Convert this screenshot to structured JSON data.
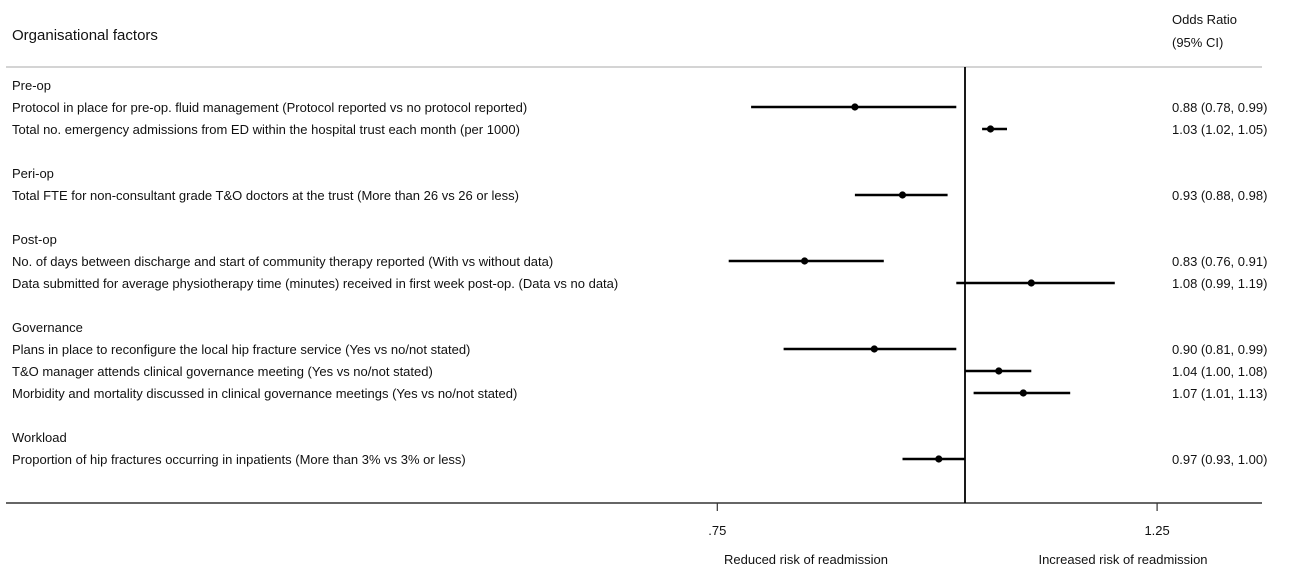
{
  "header": {
    "left_title": "Organisational factors",
    "right_title_line1": "Odds Ratio",
    "right_title_line2": "(95% CI)"
  },
  "axis": {
    "tick_labels": [
      ".75",
      "1.25"
    ],
    "left_caption": "Reduced risk of readmission",
    "right_caption": "Increased risk of readmission"
  },
  "chart_data": {
    "type": "forest",
    "x_scale": "log",
    "xlim": [
      0.6,
      1.4
    ],
    "reference_line": 1.0,
    "xticks": [
      0.75,
      1.25
    ],
    "colors": {
      "marks": "#000000",
      "frame": "#333333",
      "separator": "#bbbbbb"
    },
    "groups": [
      {
        "label": "Pre-op",
        "rows": [
          {
            "label": "Protocol in place for pre-op. fluid management (Protocol reported vs no protocol reported)",
            "or": 0.88,
            "lo": 0.78,
            "hi": 0.99,
            "ci_text": "0.88 (0.78, 0.99)"
          },
          {
            "label": "Total no. emergency admissions from ED within the hospital trust each month (per 1000)",
            "or": 1.03,
            "lo": 1.02,
            "hi": 1.05,
            "ci_text": "1.03 (1.02, 1.05)"
          }
        ]
      },
      {
        "label": "Peri-op",
        "rows": [
          {
            "label": "Total FTE for non-consultant grade T&O doctors at the trust (More than 26 vs 26 or less)",
            "or": 0.93,
            "lo": 0.88,
            "hi": 0.98,
            "ci_text": "0.93 (0.88, 0.98)"
          }
        ]
      },
      {
        "label": "Post-op",
        "rows": [
          {
            "label": "No. of days between discharge and start of community therapy reported (With vs without data)",
            "or": 0.83,
            "lo": 0.76,
            "hi": 0.91,
            "ci_text": "0.83 (0.76, 0.91)"
          },
          {
            "label": "Data submitted for average physiotherapy time (minutes) received in first week post-op. (Data vs no data)",
            "or": 1.08,
            "lo": 0.99,
            "hi": 1.19,
            "ci_text": "1.08 (0.99, 1.19)"
          }
        ]
      },
      {
        "label": "Governance",
        "rows": [
          {
            "label": "Plans in place to reconfigure the local hip fracture service (Yes vs no/not stated)",
            "or": 0.9,
            "lo": 0.81,
            "hi": 0.99,
            "ci_text": "0.90 (0.81, 0.99)"
          },
          {
            "label": "T&O manager attends clinical governance meeting (Yes vs no/not stated)",
            "or": 1.04,
            "lo": 1.0,
            "hi": 1.08,
            "ci_text": "1.04 (1.00, 1.08)"
          },
          {
            "label": "Morbidity and mortality discussed in clinical governance meetings (Yes vs no/not stated)",
            "or": 1.07,
            "lo": 1.01,
            "hi": 1.13,
            "ci_text": "1.07 (1.01, 1.13)"
          }
        ]
      },
      {
        "label": "Workload",
        "rows": [
          {
            "label": "Proportion of hip fractures occurring in inpatients (More than 3% vs 3% or less)",
            "or": 0.97,
            "lo": 0.93,
            "hi": 1.0,
            "ci_text": "0.97 (0.93, 1.00)"
          }
        ]
      }
    ]
  }
}
